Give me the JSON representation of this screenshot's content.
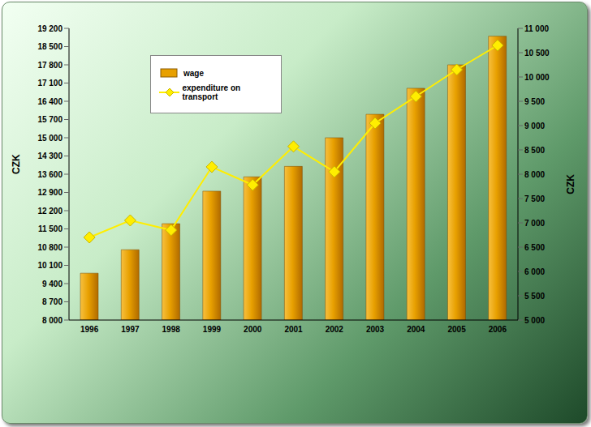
{
  "chart_data": {
    "type": "bar",
    "categories": [
      "1996",
      "1997",
      "1998",
      "1999",
      "2000",
      "2001",
      "2002",
      "2003",
      "2004",
      "2005",
      "2006"
    ],
    "y_label": "CZK",
    "y2_label": "CZK",
    "ylim": [
      8000,
      19200
    ],
    "yticks": [
      {
        "value": 8000,
        "label": "8 000"
      },
      {
        "value": 8700,
        "label": "8 700"
      },
      {
        "value": 9400,
        "label": "9 400"
      },
      {
        "value": 10100,
        "label": "10 100"
      },
      {
        "value": 10800,
        "label": "10 800"
      },
      {
        "value": 11500,
        "label": "11 500"
      },
      {
        "value": 12200,
        "label": "12 200"
      },
      {
        "value": 12900,
        "label": "12 900"
      },
      {
        "value": 13600,
        "label": "13 600"
      },
      {
        "value": 14300,
        "label": "14 300"
      },
      {
        "value": 15000,
        "label": "15 000"
      },
      {
        "value": 15700,
        "label": "15 700"
      },
      {
        "value": 16400,
        "label": "16 400"
      },
      {
        "value": 17100,
        "label": "17 100"
      },
      {
        "value": 17800,
        "label": "17 800"
      },
      {
        "value": 18500,
        "label": "18 500"
      },
      {
        "value": 19200,
        "label": "19 200"
      }
    ],
    "y2lim": [
      5000,
      11000
    ],
    "y2ticks": [
      {
        "value": 5000,
        "label": "5 000"
      },
      {
        "value": 5500,
        "label": "5 500"
      },
      {
        "value": 6000,
        "label": "6 000"
      },
      {
        "value": 6500,
        "label": "6 500"
      },
      {
        "value": 7000,
        "label": "7 000"
      },
      {
        "value": 7500,
        "label": "7 500"
      },
      {
        "value": 8000,
        "label": "8 000"
      },
      {
        "value": 8500,
        "label": "8 500"
      },
      {
        "value": 9000,
        "label": "9 000"
      },
      {
        "value": 9500,
        "label": "9 500"
      },
      {
        "value": 10000,
        "label": "10 000"
      },
      {
        "value": 10500,
        "label": "10 500"
      },
      {
        "value": 11000,
        "label": "11 000"
      }
    ],
    "series": [
      {
        "name": "wage",
        "type": "bar",
        "color": "#e8a000",
        "values": [
          9800,
          10700,
          11700,
          12950,
          13500,
          13900,
          15000,
          15900,
          16900,
          17800,
          18900
        ]
      },
      {
        "name": "expenditure on transport",
        "type": "line",
        "axis": "y2",
        "color": "#ffee00",
        "marker": "diamond",
        "values": [
          6700,
          7050,
          6850,
          8150,
          7780,
          8570,
          8050,
          9050,
          9600,
          10150,
          10650
        ]
      }
    ],
    "legend": "upper left",
    "grid": false
  }
}
